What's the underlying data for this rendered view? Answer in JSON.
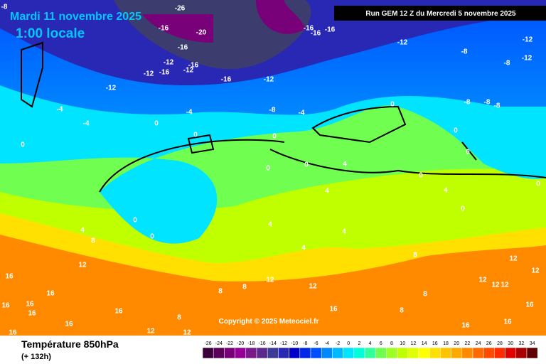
{
  "header": {
    "date": "Mardi 11 novembre 2025",
    "time": "1:00 locale",
    "run": "Run GEM 12 Z du Mercredi 5 novembre 2025",
    "copyright": "Copyright © 2025 Meteociel.fr"
  },
  "footer": {
    "title": "Température 850hPa",
    "lead": "(+ 132h)"
  },
  "colorbar": {
    "ticks": [
      -26,
      -24,
      -22,
      -20,
      -18,
      -16,
      -14,
      -12,
      -10,
      -8,
      -6,
      -4,
      -2,
      0,
      2,
      4,
      6,
      8,
      10,
      12,
      14,
      16,
      18,
      20,
      22,
      24,
      26,
      28,
      30,
      32,
      34
    ],
    "colors": [
      "#3c003c",
      "#5a005a",
      "#780078",
      "#960096",
      "#7a1a8a",
      "#5c2a8c",
      "#3c3c96",
      "#2828b4",
      "#0000c8",
      "#0028e6",
      "#0050ff",
      "#0088ff",
      "#00b8ff",
      "#00e4ff",
      "#00ffd8",
      "#30ff9c",
      "#70ff50",
      "#9cff28",
      "#c0ff00",
      "#e0ff00",
      "#ffff00",
      "#ffe000",
      "#ffc400",
      "#ffa800",
      "#ff8a00",
      "#ff6a00",
      "#ff4a00",
      "#ff2a00",
      "#e00000",
      "#a80000",
      "#600000"
    ]
  },
  "map_labels": [
    -8,
    -26,
    -16,
    -20,
    -16,
    -12,
    -12,
    -16,
    -12,
    -16,
    -16,
    -12,
    -12,
    -16,
    -16,
    -16,
    -12,
    -12,
    -8,
    -12,
    -8,
    -8,
    -8,
    -8,
    -4,
    -4,
    -4,
    -8,
    -4,
    0,
    0,
    0,
    0,
    0,
    0,
    0,
    0,
    0,
    0,
    0,
    0,
    0,
    0,
    4,
    4,
    4,
    4,
    4,
    4,
    4,
    8,
    8,
    8,
    8,
    8,
    8,
    12,
    12,
    12,
    12,
    12,
    12,
    12,
    12,
    12,
    16,
    16,
    16,
    16,
    16,
    16,
    16,
    16,
    16,
    16,
    16,
    16,
    8,
    12
  ]
}
